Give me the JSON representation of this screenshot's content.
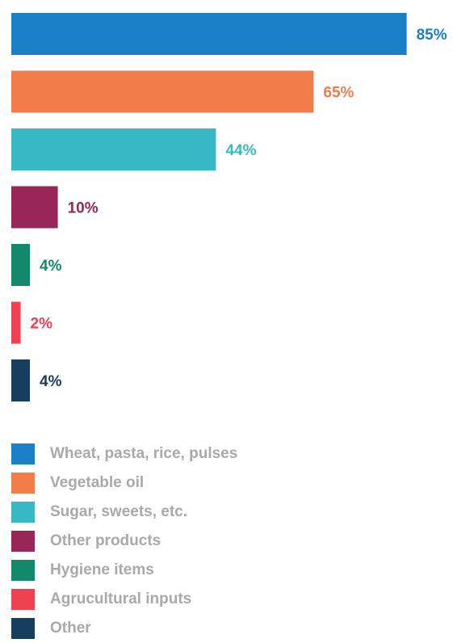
{
  "chart_data": {
    "type": "bar",
    "orientation": "horizontal",
    "categories": [
      "Wheat, pasta, rice, pulses",
      "Vegetable oil",
      "Sugar, sweets, etc.",
      "Other products",
      "Hygiene items",
      "Agrucultural inputs",
      "Other"
    ],
    "values": [
      85,
      65,
      44,
      10,
      4,
      2,
      4
    ],
    "value_labels": [
      "85%",
      "65%",
      "44%",
      "10%",
      "4%",
      "2%",
      "4%"
    ],
    "unit": "%",
    "colors": [
      "#1a7fc6",
      "#f37d4a",
      "#38b7c4",
      "#982656",
      "#128a6a",
      "#ef4150",
      "#163e5f"
    ],
    "xlim": [
      0,
      100
    ],
    "grid": false,
    "legend_position": "bottom",
    "title": "",
    "xlabel": "",
    "ylabel": ""
  }
}
